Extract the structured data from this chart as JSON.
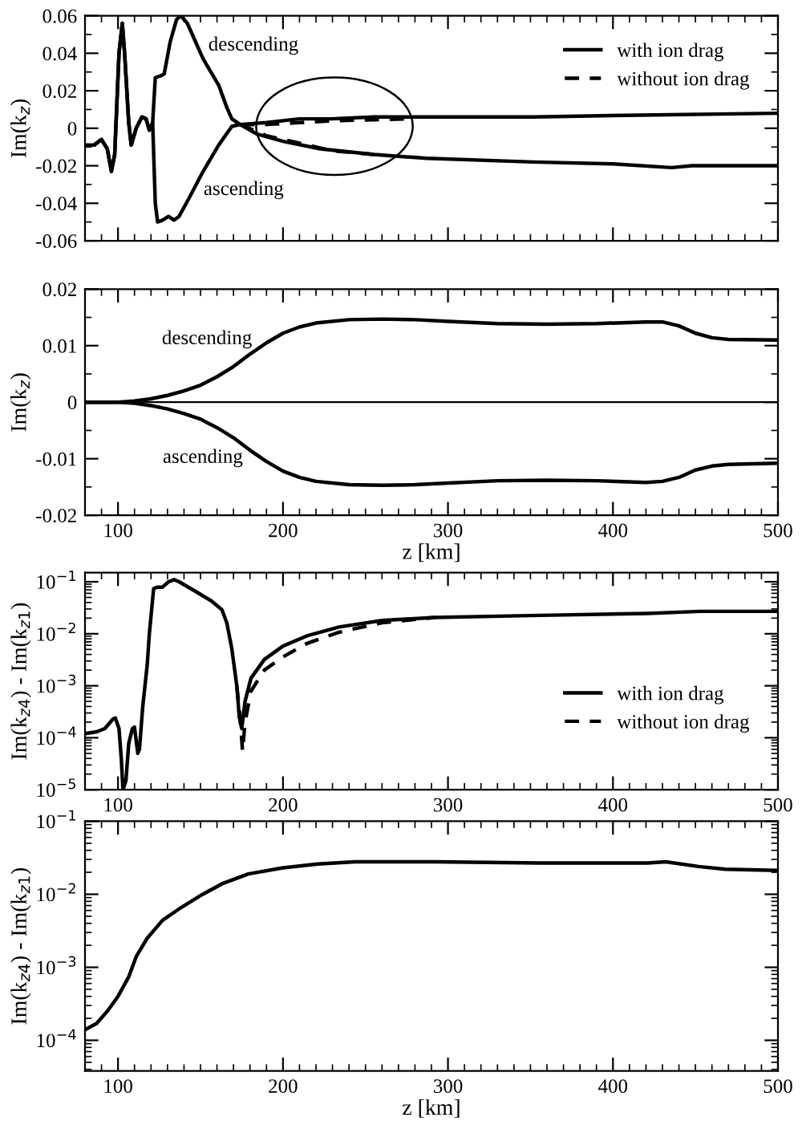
{
  "chart_data": [
    {
      "type": "line",
      "ylabel": "Im(k$_{z}$)",
      "xlim": [
        80,
        500
      ],
      "xticks": [
        100,
        200,
        300,
        400,
        500
      ],
      "ylim": [
        -0.06,
        0.06
      ],
      "yticks": [
        -0.06,
        -0.04,
        -0.02,
        0,
        0.02,
        0.04,
        0.06
      ],
      "tick_labels": "y",
      "legend": "top right",
      "grid": false,
      "annotations": [
        "descending",
        "ascending"
      ],
      "series": [
        {
          "name": "with ion drag",
          "color": "#000000",
          "line_style": "solid",
          "x": [
            80,
            85.5,
            90,
            93.5,
            96,
            98,
            100.6,
            102.6,
            104,
            106.5,
            108,
            111,
            114.5,
            117,
            119,
            121,
            122.6,
            126,
            128,
            131.6,
            135.5,
            138,
            142,
            151.6,
            161,
            166,
            169,
            174,
            190,
            209.7,
            229,
            255,
            287,
            351.6,
            416,
            500
          ],
          "values": [
            -0.009,
            -0.009,
            -0.006,
            -0.011,
            -0.023,
            -0.014,
            0.04,
            0.056,
            0.04,
            0.003,
            -0.009,
            0,
            0.006,
            0.005,
            -0.001,
            0.003,
            0.027,
            0.028,
            0.029,
            0.046,
            0.058,
            0.06,
            0.056,
            0.037,
            0.023,
            0.011,
            0.005,
            0.002,
            0.003,
            0.005,
            0.005,
            0.006,
            0.006,
            0.006,
            0.007,
            0.008
          ]
        },
        {
          "color": "#000000",
          "line_style": "solid",
          "x": [
            80,
            85.5,
            90,
            93.5,
            96,
            98,
            100.6,
            102.6,
            104,
            106.5,
            108,
            111,
            114.5,
            117,
            119,
            121,
            122.6,
            124,
            127,
            130.6,
            134,
            137,
            142,
            151.6,
            161,
            169,
            174,
            184,
            200,
            222.6,
            255,
            287,
            351.6,
            400,
            435.5,
            448,
            500
          ],
          "values": [
            -0.009,
            -0.009,
            -0.006,
            -0.011,
            -0.023,
            -0.014,
            0.04,
            0.056,
            0.04,
            0.003,
            -0.009,
            0,
            0.006,
            0.005,
            -0.001,
            0.003,
            -0.04,
            -0.05,
            -0.049,
            -0.047,
            -0.049,
            -0.047,
            -0.039,
            -0.023,
            -0.009,
            0.001,
            0.002,
            -0.003,
            -0.007,
            -0.011,
            -0.014,
            -0.016,
            -0.018,
            -0.019,
            -0.021,
            -0.02,
            -0.02
          ]
        },
        {
          "name": "without ion drag",
          "color": "#000000",
          "line_style": "dashed",
          "x": [
            174,
            190,
            210,
            230,
            255,
            275
          ],
          "values": [
            0.002,
            0.002,
            0.003,
            0.004,
            0.0045,
            0.005
          ]
        },
        {
          "color": "#000000",
          "line_style": "dashed",
          "x": [
            174,
            190,
            210,
            230,
            255
          ],
          "values": [
            0.002,
            -0.004,
            -0.008,
            -0.012,
            -0.014
          ]
        }
      ]
    },
    {
      "type": "line",
      "xlabel": "z [km]",
      "ylabel": "Im(k$_{z}$)",
      "xlim": [
        80,
        500
      ],
      "xticks": [
        100,
        200,
        300,
        400,
        500
      ],
      "ylim": [
        -0.02,
        0.02
      ],
      "yticks": [
        -0.02,
        -0.01,
        0,
        0.01,
        0.02
      ],
      "grid": false,
      "ref_lines": [
        {
          "axis": "y",
          "value": 0,
          "color": "#000000"
        }
      ],
      "annotations": [
        "descending",
        "ascending"
      ],
      "series": [
        {
          "color": "#000000",
          "line_style": "solid",
          "x": [
            80,
            100,
            110,
            120,
            130,
            140,
            150,
            160,
            170,
            180,
            190,
            200,
            210,
            220,
            240,
            260,
            280,
            300,
            330,
            360,
            390,
            420,
            430,
            440,
            450,
            460,
            470,
            500
          ],
          "values": [
            0,
            0,
            0.0002,
            0.0006,
            0.0012,
            0.002,
            0.003,
            0.0045,
            0.0063,
            0.0085,
            0.0105,
            0.0122,
            0.0133,
            0.014,
            0.0146,
            0.0147,
            0.0146,
            0.0143,
            0.0139,
            0.0138,
            0.0139,
            0.0142,
            0.0142,
            0.0135,
            0.0122,
            0.0114,
            0.0111,
            0.011
          ]
        },
        {
          "color": "#000000",
          "line_style": "solid",
          "x": [
            80,
            100,
            110,
            120,
            130,
            140,
            150,
            160,
            170,
            180,
            190,
            200,
            210,
            220,
            240,
            260,
            280,
            300,
            330,
            360,
            390,
            420,
            430,
            440,
            450,
            460,
            470,
            500
          ],
          "values": [
            0,
            0,
            -0.0002,
            -0.0006,
            -0.0012,
            -0.002,
            -0.003,
            -0.0045,
            -0.0063,
            -0.0085,
            -0.0105,
            -0.0122,
            -0.0133,
            -0.014,
            -0.0146,
            -0.0147,
            -0.0146,
            -0.0143,
            -0.0139,
            -0.0138,
            -0.0139,
            -0.0142,
            -0.014,
            -0.0133,
            -0.012,
            -0.0113,
            -0.011,
            -0.0108
          ]
        }
      ]
    },
    {
      "type": "line",
      "ylabel": "Im(k$_{z4}$) - Im(k$_{z1}$)",
      "log": "y",
      "xlim": [
        80,
        500
      ],
      "xticks": [
        100,
        200,
        300,
        400,
        500
      ],
      "ylim": [
        1e-05,
        0.15
      ],
      "yticks": [
        {
          "value": 1e-05,
          "label": "10$^{−5}$"
        },
        {
          "value": 0.0001,
          "label": "10$^{−4}$"
        },
        {
          "value": 0.001,
          "label": "10$^{−3}$"
        },
        {
          "value": 0.01,
          "label": "10$^{−2}$"
        },
        {
          "value": 0.1,
          "label": "10$^{−1}$"
        }
      ],
      "legend": "bottom right",
      "grid": false,
      "series": [
        {
          "name": "with ion drag",
          "color": "#000000",
          "line_style": "solid",
          "x": [
            80,
            87,
            92,
            97,
            98.4,
            100.6,
            102,
            103,
            104.8,
            106.5,
            108.7,
            110,
            112,
            113,
            115,
            117.7,
            119,
            121.6,
            124,
            127,
            130.6,
            134,
            137,
            146.8,
            156.5,
            163,
            166,
            169,
            172,
            173.5,
            175,
            177,
            180.6,
            188.7,
            200,
            214.5,
            234,
            260,
            292,
            356,
            421,
            453,
            500
          ],
          "values": [
            0.00012,
            0.00013,
            0.00015,
            0.00023,
            0.00024,
            0.00015,
            3.9e-05,
            1e-05,
            1.5e-05,
            7.8e-05,
            0.00015,
            0.00016,
            5e-05,
            6e-05,
            0.0004,
            0.0025,
            0.01,
            0.074,
            0.079,
            0.079,
            0.1,
            0.11,
            0.1,
            0.066,
            0.043,
            0.029,
            0.016,
            0.0051,
            0.001,
            0.00025,
            0.00015,
            0.0005,
            0.0014,
            0.0032,
            0.0058,
            0.0091,
            0.0135,
            0.018,
            0.0206,
            0.0226,
            0.0246,
            0.027,
            0.027
          ]
        },
        {
          "name": "without ion drag",
          "color": "#000000",
          "line_style": "dashed",
          "x": [
            172,
            174,
            175.5,
            177,
            180.6,
            188.7,
            200,
            214.5,
            234,
            260,
            292
          ],
          "values": [
            0.001,
            0.00025,
            5.5e-05,
            0.0002,
            0.00079,
            0.002,
            0.0036,
            0.0065,
            0.0107,
            0.0163,
            0.0206
          ]
        }
      ]
    },
    {
      "type": "line",
      "xlabel": "z [km]",
      "ylabel": "Im(k$_{z4}$) - Im(k$_{z1}$)",
      "log": "y",
      "xlim": [
        80,
        500
      ],
      "xticks": [
        100,
        200,
        300,
        400,
        500
      ],
      "ylim": [
        3.8e-05,
        0.1
      ],
      "yticks": [
        {
          "value": 0.0001,
          "label": "10$^{−4}$"
        },
        {
          "value": 0.001,
          "label": "10$^{−3}$"
        },
        {
          "value": 0.01,
          "label": "10$^{−2}$"
        },
        {
          "value": 0.1,
          "label": "10$^{−1}$"
        }
      ],
      "grid": false,
      "series": [
        {
          "color": "#000000",
          "line_style": "solid",
          "x": [
            80,
            87,
            93.5,
            100,
            106.5,
            111,
            117.7,
            127,
            137,
            150,
            163,
            179,
            200,
            221,
            243.7,
            292,
            356,
            421,
            432,
            452,
            468,
            500
          ],
          "values": [
            0.00014,
            0.00017,
            0.00025,
            0.0004,
            0.00074,
            0.0014,
            0.0025,
            0.0044,
            0.0063,
            0.0096,
            0.0139,
            0.019,
            0.023,
            0.026,
            0.0278,
            0.0278,
            0.0268,
            0.0268,
            0.0278,
            0.024,
            0.022,
            0.0212
          ]
        }
      ]
    }
  ]
}
